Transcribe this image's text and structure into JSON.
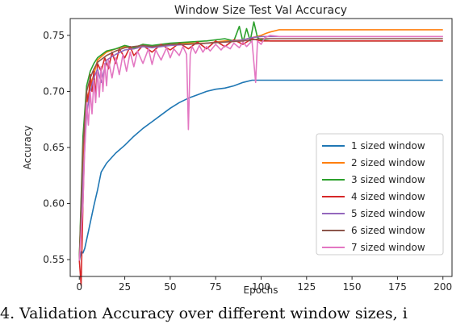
{
  "chart_data": {
    "type": "line",
    "title": "Window Size Test Val Accuracy",
    "xlabel": "Epochs",
    "ylabel": "Accuracy",
    "xlim": [
      -5,
      205
    ],
    "ylim": [
      0.535,
      0.765
    ],
    "x_ticks": [
      0,
      25,
      50,
      75,
      100,
      125,
      150,
      175,
      200
    ],
    "y_ticks": [
      0.55,
      0.6,
      0.65,
      0.7,
      0.75
    ],
    "y_tick_labels": [
      "0.55",
      "0.60",
      "0.65",
      "0.70",
      "0.75"
    ],
    "grid": false,
    "legend_position": "lower right",
    "series": [
      {
        "name": "1 sized window",
        "color": "#1f77b4",
        "points": [
          [
            0,
            0.549
          ],
          [
            1,
            0.557
          ],
          [
            2,
            0.556
          ],
          [
            3,
            0.56
          ],
          [
            5,
            0.575
          ],
          [
            8,
            0.598
          ],
          [
            10,
            0.612
          ],
          [
            12,
            0.628
          ],
          [
            15,
            0.636
          ],
          [
            20,
            0.645
          ],
          [
            25,
            0.652
          ],
          [
            30,
            0.66
          ],
          [
            35,
            0.667
          ],
          [
            40,
            0.673
          ],
          [
            45,
            0.679
          ],
          [
            50,
            0.685
          ],
          [
            55,
            0.69
          ],
          [
            60,
            0.694
          ],
          [
            65,
            0.697
          ],
          [
            70,
            0.7
          ],
          [
            75,
            0.702
          ],
          [
            80,
            0.703
          ],
          [
            85,
            0.705
          ],
          [
            90,
            0.708
          ],
          [
            95,
            0.71
          ],
          [
            100,
            0.71
          ],
          [
            120,
            0.71
          ],
          [
            150,
            0.71
          ],
          [
            200,
            0.71
          ]
        ]
      },
      {
        "name": "2 sized window",
        "color": "#ff7f0e",
        "points": [
          [
            0,
            0.552
          ],
          [
            2,
            0.64
          ],
          [
            4,
            0.69
          ],
          [
            6,
            0.705
          ],
          [
            8,
            0.715
          ],
          [
            10,
            0.728
          ],
          [
            15,
            0.735
          ],
          [
            20,
            0.738
          ],
          [
            25,
            0.74
          ],
          [
            30,
            0.738
          ],
          [
            35,
            0.742
          ],
          [
            40,
            0.74
          ],
          [
            50,
            0.742
          ],
          [
            60,
            0.743
          ],
          [
            70,
            0.743
          ],
          [
            80,
            0.745
          ],
          [
            90,
            0.746
          ],
          [
            95,
            0.748
          ],
          [
            100,
            0.75
          ],
          [
            103,
            0.752
          ],
          [
            105,
            0.753
          ],
          [
            110,
            0.755
          ],
          [
            120,
            0.755
          ],
          [
            150,
            0.755
          ],
          [
            200,
            0.755
          ]
        ]
      },
      {
        "name": "3 sized window",
        "color": "#2ca02c",
        "points": [
          [
            0,
            0.552
          ],
          [
            2,
            0.66
          ],
          [
            4,
            0.705
          ],
          [
            6,
            0.718
          ],
          [
            8,
            0.725
          ],
          [
            10,
            0.73
          ],
          [
            15,
            0.736
          ],
          [
            20,
            0.738
          ],
          [
            25,
            0.741
          ],
          [
            30,
            0.739
          ],
          [
            35,
            0.742
          ],
          [
            40,
            0.741
          ],
          [
            50,
            0.743
          ],
          [
            60,
            0.744
          ],
          [
            70,
            0.745
          ],
          [
            80,
            0.747
          ],
          [
            85,
            0.745
          ],
          [
            88,
            0.758
          ],
          [
            90,
            0.744
          ],
          [
            92,
            0.756
          ],
          [
            94,
            0.745
          ],
          [
            96,
            0.762
          ],
          [
            98,
            0.748
          ],
          [
            100,
            0.746
          ],
          [
            105,
            0.745
          ],
          [
            150,
            0.745
          ],
          [
            200,
            0.745
          ]
        ]
      },
      {
        "name": "4 sized window",
        "color": "#d62728",
        "points": [
          [
            0,
            0.549
          ],
          [
            1,
            0.527
          ],
          [
            2,
            0.6
          ],
          [
            3,
            0.66
          ],
          [
            4,
            0.7
          ],
          [
            5,
            0.69
          ],
          [
            6,
            0.715
          ],
          [
            7,
            0.7
          ],
          [
            8,
            0.718
          ],
          [
            9,
            0.695
          ],
          [
            10,
            0.725
          ],
          [
            12,
            0.718
          ],
          [
            14,
            0.73
          ],
          [
            16,
            0.72
          ],
          [
            18,
            0.735
          ],
          [
            20,
            0.725
          ],
          [
            22,
            0.738
          ],
          [
            25,
            0.73
          ],
          [
            28,
            0.74
          ],
          [
            30,
            0.732
          ],
          [
            35,
            0.741
          ],
          [
            40,
            0.735
          ],
          [
            45,
            0.742
          ],
          [
            50,
            0.737
          ],
          [
            55,
            0.743
          ],
          [
            60,
            0.738
          ],
          [
            65,
            0.744
          ],
          [
            70,
            0.738
          ],
          [
            75,
            0.745
          ],
          [
            80,
            0.74
          ],
          [
            85,
            0.746
          ],
          [
            90,
            0.742
          ],
          [
            95,
            0.747
          ],
          [
            100,
            0.745
          ],
          [
            110,
            0.745
          ],
          [
            150,
            0.745
          ],
          [
            200,
            0.745
          ]
        ]
      },
      {
        "name": "5 sized window",
        "color": "#9467bd",
        "points": [
          [
            0,
            0.551
          ],
          [
            2,
            0.62
          ],
          [
            4,
            0.68
          ],
          [
            6,
            0.7
          ],
          [
            8,
            0.712
          ],
          [
            10,
            0.72
          ],
          [
            12,
            0.708
          ],
          [
            15,
            0.728
          ],
          [
            20,
            0.733
          ],
          [
            25,
            0.737
          ],
          [
            30,
            0.738
          ],
          [
            35,
            0.74
          ],
          [
            40,
            0.739
          ],
          [
            50,
            0.741
          ],
          [
            60,
            0.742
          ],
          [
            70,
            0.743
          ],
          [
            80,
            0.744
          ],
          [
            90,
            0.746
          ],
          [
            95,
            0.748
          ],
          [
            100,
            0.749
          ],
          [
            110,
            0.749
          ],
          [
            150,
            0.749
          ],
          [
            200,
            0.749
          ]
        ]
      },
      {
        "name": "6 sized window",
        "color": "#8c564b",
        "points": [
          [
            0,
            0.55
          ],
          [
            2,
            0.65
          ],
          [
            4,
            0.7
          ],
          [
            6,
            0.712
          ],
          [
            8,
            0.72
          ],
          [
            10,
            0.726
          ],
          [
            15,
            0.732
          ],
          [
            20,
            0.736
          ],
          [
            25,
            0.739
          ],
          [
            30,
            0.74
          ],
          [
            35,
            0.741
          ],
          [
            40,
            0.74
          ],
          [
            50,
            0.742
          ],
          [
            60,
            0.742
          ],
          [
            70,
            0.743
          ],
          [
            80,
            0.744
          ],
          [
            90,
            0.745
          ],
          [
            100,
            0.747
          ],
          [
            110,
            0.747
          ],
          [
            150,
            0.747
          ],
          [
            200,
            0.747
          ]
        ]
      },
      {
        "name": "7 sized window",
        "color": "#e377c2",
        "points": [
          [
            0,
            0.549
          ],
          [
            2,
            0.6
          ],
          [
            3,
            0.65
          ],
          [
            4,
            0.69
          ],
          [
            5,
            0.67
          ],
          [
            6,
            0.7
          ],
          [
            7,
            0.68
          ],
          [
            8,
            0.71
          ],
          [
            9,
            0.69
          ],
          [
            10,
            0.718
          ],
          [
            11,
            0.695
          ],
          [
            12,
            0.722
          ],
          [
            13,
            0.7
          ],
          [
            14,
            0.725
          ],
          [
            15,
            0.705
          ],
          [
            16,
            0.728
          ],
          [
            18,
            0.712
          ],
          [
            20,
            0.73
          ],
          [
            22,
            0.715
          ],
          [
            24,
            0.733
          ],
          [
            26,
            0.718
          ],
          [
            28,
            0.735
          ],
          [
            30,
            0.722
          ],
          [
            32,
            0.736
          ],
          [
            35,
            0.725
          ],
          [
            38,
            0.738
          ],
          [
            40,
            0.724
          ],
          [
            42,
            0.737
          ],
          [
            45,
            0.728
          ],
          [
            48,
            0.739
          ],
          [
            50,
            0.73
          ],
          [
            52,
            0.738
          ],
          [
            55,
            0.732
          ],
          [
            57,
            0.74
          ],
          [
            59,
            0.733
          ],
          [
            60,
            0.666
          ],
          [
            61,
            0.733
          ],
          [
            62,
            0.74
          ],
          [
            64,
            0.734
          ],
          [
            66,
            0.741
          ],
          [
            68,
            0.735
          ],
          [
            70,
            0.74
          ],
          [
            72,
            0.736
          ],
          [
            75,
            0.742
          ],
          [
            78,
            0.737
          ],
          [
            80,
            0.741
          ],
          [
            83,
            0.738
          ],
          [
            85,
            0.743
          ],
          [
            88,
            0.739
          ],
          [
            90,
            0.744
          ],
          [
            92,
            0.74
          ],
          [
            95,
            0.745
          ],
          [
            97,
            0.708
          ],
          [
            98,
            0.745
          ],
          [
            100,
            0.742
          ],
          [
            102,
            0.748
          ],
          [
            105,
            0.75
          ],
          [
            110,
            0.749
          ],
          [
            150,
            0.749
          ],
          [
            200,
            0.749
          ]
        ]
      }
    ]
  },
  "caption": "4. Validation Accuracy over different window sizes, i"
}
